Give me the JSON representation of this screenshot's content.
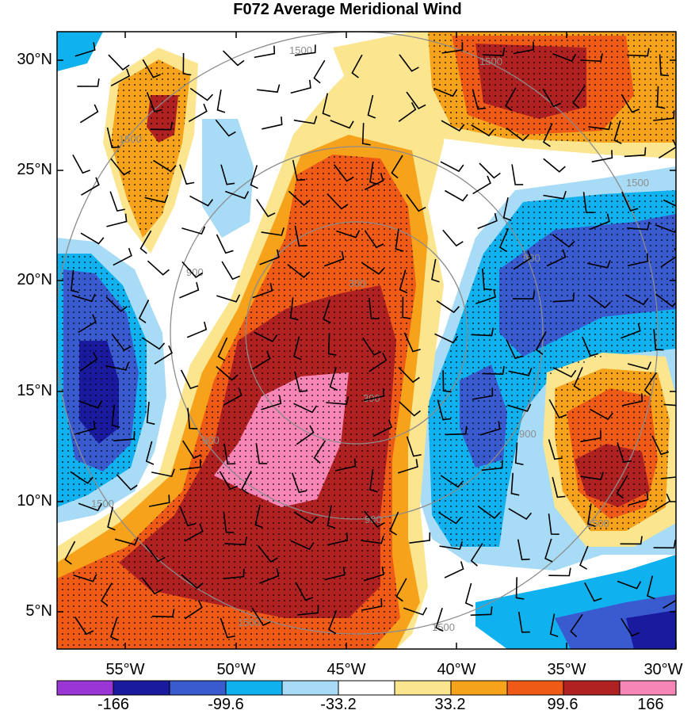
{
  "title": "F072 Average Meridional Wind",
  "lat_labels": [
    "30°N",
    "25°N",
    "20°N",
    "15°N",
    "10°N",
    "5°N"
  ],
  "lon_labels": [
    "55°W",
    "50°W",
    "45°W",
    "40°W",
    "35°W",
    "30°W"
  ],
  "colorbar": {
    "labels": [
      "-166",
      "-99.6",
      "-33.2",
      "33.2",
      "99.6",
      "166"
    ],
    "colors": [
      "#9a36d4",
      "#1a1a9e",
      "#3a5ad0",
      "#0fb2ef",
      "#a8dcf6",
      "#ffffff",
      "#fbe58e",
      "#f7a21b",
      "#ef5a16",
      "#b02222",
      "#f785b6"
    ]
  },
  "range_ring_labels": [
    "300",
    "900",
    "1500"
  ]
}
